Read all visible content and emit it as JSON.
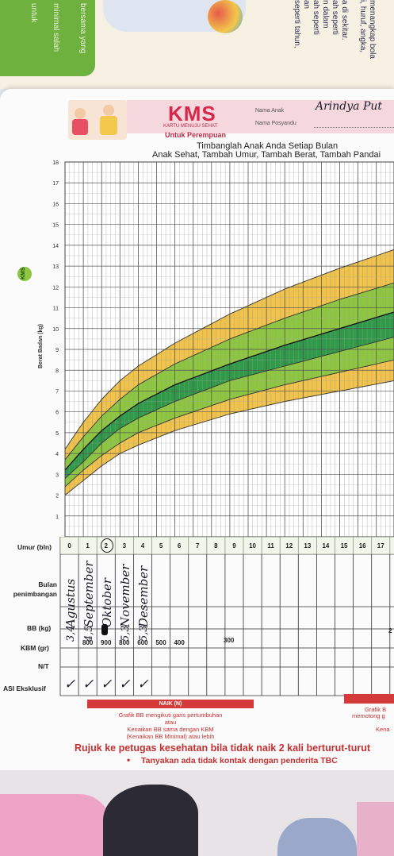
{
  "book_page": {
    "lines": [
      "menangkap bola",
      "i, huruf, angka,",
      "a di sekitar.",
      "ah seperti",
      "n dalam",
      "ah seperti",
      "an",
      "seperti tahun,"
    ],
    "green_box_lines": [
      "bersama yang",
      "minimal salah",
      "untuk"
    ]
  },
  "kms_card": {
    "logo": "KMS",
    "logo_sub": "KARTU MENUJU SEHAT",
    "for_label": "Untuk Perempuan",
    "nama_anak_label": "Nama Anak",
    "nama_anak_value": "Arindya Put",
    "nama_posyandu_label": "Nama Posyandu",
    "headline1": "Timbanglah Anak Anda Setiap Bulan",
    "headline2": "Anak Sehat, Tambah Umur, Tambah Berat, Tambah Pandai",
    "side_badge": "KMS",
    "y_axis_title": "Berat Badan (kg)"
  },
  "chart_data": {
    "type": "area",
    "title": "Timbanglah Anak Anda Setiap Bulan",
    "ylabel": "Berat Badan (kg)",
    "xlabel": "Umur (bln)",
    "ylim": [
      0,
      18
    ],
    "xlim": [
      0,
      18
    ],
    "y_ticks": [
      "1",
      "2",
      "3",
      "4",
      "5",
      "6",
      "7",
      "8",
      "9",
      "10",
      "11",
      "12",
      "13",
      "14",
      "15",
      "16",
      "17",
      "18"
    ],
    "grid": true,
    "bands": [
      {
        "name": "yellow-upper",
        "color": "#f2c34a"
      },
      {
        "name": "light-green-upper",
        "color": "#8dc63f"
      },
      {
        "name": "dark-green",
        "color": "#2f9a48"
      },
      {
        "name": "light-green-lower",
        "color": "#8dc63f"
      },
      {
        "name": "yellow-lower",
        "color": "#f2c34a"
      }
    ],
    "boundaries": [
      {
        "x": [
          0,
          1,
          2,
          3,
          4,
          6,
          9,
          12,
          15,
          18
        ],
        "y": [
          2.0,
          2.7,
          3.4,
          4.0,
          4.4,
          5.1,
          5.9,
          6.5,
          7.0,
          7.5
        ]
      },
      {
        "x": [
          0,
          1,
          2,
          3,
          4,
          6,
          9,
          12,
          15,
          18
        ],
        "y": [
          2.4,
          3.2,
          3.9,
          4.5,
          5.0,
          5.7,
          6.6,
          7.3,
          7.9,
          8.5
        ]
      },
      {
        "x": [
          0,
          1,
          2,
          3,
          4,
          6,
          9,
          12,
          15,
          18
        ],
        "y": [
          2.8,
          3.6,
          4.5,
          5.2,
          5.7,
          6.5,
          7.5,
          8.2,
          8.9,
          9.6
        ]
      },
      {
        "x": [
          0,
          1,
          2,
          3,
          4,
          6,
          9,
          12,
          15,
          18
        ],
        "y": [
          3.2,
          4.2,
          5.1,
          5.8,
          6.4,
          7.3,
          8.3,
          9.2,
          10.0,
          10.8
        ]
      },
      {
        "x": [
          0,
          1,
          2,
          3,
          4,
          6,
          9,
          12,
          15,
          18
        ],
        "y": [
          3.7,
          4.8,
          5.8,
          6.6,
          7.3,
          8.3,
          9.5,
          10.5,
          11.4,
          12.2
        ]
      },
      {
        "x": [
          0,
          1,
          2,
          3,
          4,
          6,
          9,
          12,
          15,
          18
        ],
        "y": [
          4.2,
          5.5,
          6.6,
          7.5,
          8.2,
          9.3,
          10.7,
          11.9,
          12.9,
          13.8
        ]
      }
    ],
    "median": {
      "x": [
        0,
        1,
        2,
        3,
        4,
        6,
        9,
        12,
        15,
        18
      ],
      "y": [
        3.2,
        4.2,
        5.1,
        5.8,
        6.4,
        7.3,
        8.3,
        9.2,
        10.0,
        10.8
      ]
    },
    "x_ticks": [
      "0",
      "1",
      "2",
      "3",
      "4",
      "5",
      "6",
      "7",
      "8",
      "9",
      "10",
      "11",
      "12",
      "13",
      "14",
      "15",
      "16",
      "17",
      "18"
    ]
  },
  "table": {
    "row_labels": {
      "umur": "Umur (bln)",
      "bulan": "Bulan penimbangan",
      "bb": "BB (kg)",
      "kbm": "KBM (gr)",
      "nt": "N/T",
      "asi": "ASI Eksklusif"
    },
    "umur_values": [
      "0",
      "1",
      "2",
      "3",
      "4",
      "5",
      "6",
      "7",
      "8",
      "9",
      "10",
      "11",
      "12",
      "13",
      "14",
      "15",
      "16",
      "17",
      "18"
    ],
    "bulan_values": [
      "Agustus",
      "September",
      "Oktober",
      "November",
      "Desember"
    ],
    "bb_values": [
      "3,4",
      "4,5",
      "",
      "5,3",
      "5,3"
    ],
    "kbm_values": [
      "",
      "800",
      "900",
      "800",
      "600",
      "500",
      "400"
    ],
    "kbm_mid": "300",
    "kbm_right": "2",
    "asi_marks": [
      "✓",
      "✓",
      "✓",
      "✓",
      "✓"
    ]
  },
  "legend": {
    "naik_title": "NAIK (N)",
    "naik_line1": "Grafik BB mengikuti garis pertumbuhan",
    "naik_line2": "atau",
    "naik_line3": "Kenaikan BB sama dengan KBM",
    "naik_line4": "(Kenaikan BB Minimal) atau lebih",
    "tidak_title": "Grafik B",
    "tidak_line1": "memotong g",
    "tidak_line2": "Kena"
  },
  "footer": {
    "rujuk": "Rujuk ke petugas kesehatan bila tidak naik 2 kali berturut-turut",
    "tanyakan": "Tanyakan ada tidak kontak dengan penderita TBC"
  }
}
